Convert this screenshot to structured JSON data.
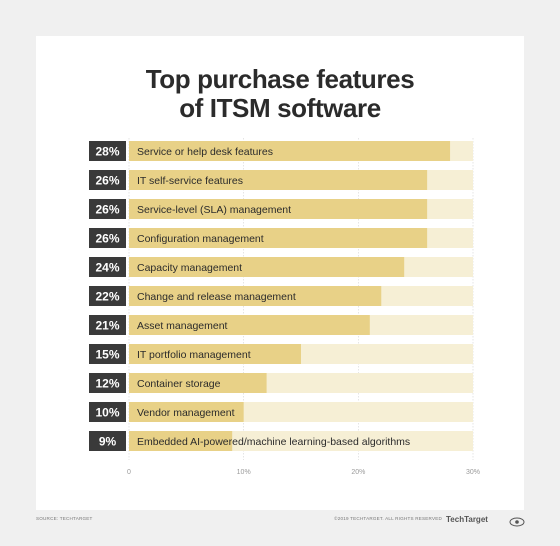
{
  "chart_data": {
    "type": "bar",
    "orientation": "horizontal",
    "title": "Top purchase features of ITSM software",
    "title_lines": [
      "Top purchase features",
      "of ITSM software"
    ],
    "categories": [
      "Service or help desk features",
      "IT self-service features",
      "Service-level (SLA) management",
      "Configuration management",
      "Capacity management",
      "Change and release management",
      "Asset management",
      "IT portfolio management",
      "Container storage",
      "Vendor management",
      "Embedded AI-powered/machine learning-based algorithms"
    ],
    "values": [
      28,
      26,
      26,
      26,
      24,
      22,
      21,
      15,
      12,
      10,
      9
    ],
    "value_labels": [
      "28%",
      "26%",
      "26%",
      "26%",
      "24%",
      "22%",
      "21%",
      "15%",
      "12%",
      "10%",
      "9%"
    ],
    "xlim": [
      0,
      30
    ],
    "xticks": [
      0,
      10,
      20,
      30
    ],
    "xtick_labels": [
      "0",
      "10%",
      "20%",
      "30%"
    ],
    "xlabel": "",
    "ylabel": "",
    "grid": true,
    "legend": "none"
  },
  "footer": {
    "source": "SOURCE: TECHTARGET",
    "copyright": "©2019 TECHTARGET. ALL RIGHTS RESERVED",
    "brand": "TechTarget"
  },
  "colors": {
    "page_background": "#f0f0f0",
    "card": "#ffffff",
    "bar_fill": "#e8d187",
    "bar_track": "#f6efd5",
    "label_box": "#3a3a3a",
    "gridline": "#d4d4d4"
  }
}
